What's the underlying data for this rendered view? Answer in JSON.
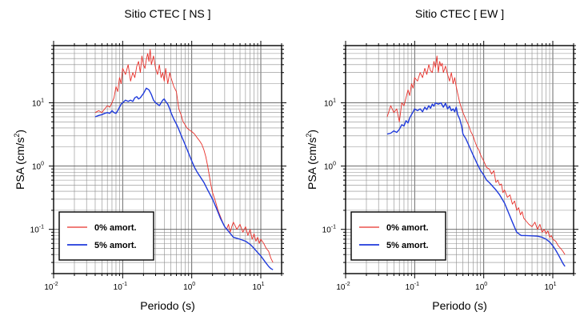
{
  "chart_data": [
    {
      "type": "line",
      "title": "Sitio CTEC [ NS ]",
      "xlabel": "Periodo (s)",
      "ylabel_main": "PSA (cm/s",
      "ylabel_sup": "2",
      "ylabel_end": ")",
      "xscale": "log",
      "yscale": "log",
      "xlim": [
        0.01,
        20
      ],
      "ylim": [
        0.02,
        80
      ],
      "grid": true,
      "legend_position": "bottom-left",
      "xticks": [
        {
          "value": 0.01,
          "base": "10",
          "exp": "-2"
        },
        {
          "value": 0.1,
          "base": "10",
          "exp": "-1"
        },
        {
          "value": 1,
          "base": "10",
          "exp": "0"
        },
        {
          "value": 10,
          "base": "10",
          "exp": "1"
        }
      ],
      "yticks": [
        {
          "value": 0.1,
          "base": "10",
          "exp": "-1"
        },
        {
          "value": 1,
          "base": "10",
          "exp": "0"
        },
        {
          "value": 10,
          "base": "10",
          "exp": "1"
        }
      ],
      "series": [
        {
          "name": "0% amort.",
          "color": "#e8302a",
          "x": [
            0.04,
            0.045,
            0.05,
            0.055,
            0.06,
            0.065,
            0.07,
            0.075,
            0.08,
            0.085,
            0.09,
            0.095,
            0.1,
            0.11,
            0.12,
            0.13,
            0.14,
            0.15,
            0.16,
            0.17,
            0.18,
            0.19,
            0.2,
            0.21,
            0.22,
            0.23,
            0.24,
            0.25,
            0.26,
            0.28,
            0.3,
            0.32,
            0.34,
            0.36,
            0.38,
            0.4,
            0.42,
            0.45,
            0.48,
            0.5,
            0.55,
            0.6,
            0.65,
            0.7,
            0.75,
            0.8,
            0.85,
            0.9,
            1.0,
            1.1,
            1.2,
            1.3,
            1.4,
            1.5,
            1.6,
            1.7,
            1.8,
            1.9,
            2.0,
            2.2,
            2.4,
            2.6,
            2.8,
            3.0,
            3.2,
            3.4,
            3.6,
            3.8,
            4.0,
            4.5,
            5.0,
            5.5,
            6.0,
            6.5,
            7.0,
            7.5,
            8.0,
            8.5,
            9.0,
            9.5,
            10,
            11,
            12,
            13,
            14,
            15
          ],
          "y": [
            7,
            7.5,
            7,
            8,
            9,
            8.5,
            10,
            12,
            18,
            15,
            25,
            20,
            35,
            28,
            40,
            22,
            30,
            25,
            38,
            45,
            30,
            55,
            40,
            35,
            48,
            60,
            45,
            70,
            40,
            55,
            35,
            28,
            40,
            25,
            30,
            22,
            35,
            20,
            30,
            25,
            18,
            15,
            8,
            6.5,
            5,
            4.5,
            4,
            3.8,
            3.5,
            3.2,
            2.8,
            2.5,
            2.2,
            1.8,
            1.4,
            1.0,
            0.7,
            0.5,
            0.38,
            0.28,
            0.2,
            0.16,
            0.13,
            0.11,
            0.1,
            0.12,
            0.09,
            0.11,
            0.13,
            0.1,
            0.12,
            0.09,
            0.11,
            0.08,
            0.1,
            0.07,
            0.085,
            0.065,
            0.075,
            0.06,
            0.07,
            0.06,
            0.05,
            0.045,
            0.035,
            0.03
          ]
        },
        {
          "name": "5% amort.",
          "color": "#1f3adb",
          "x": [
            0.04,
            0.045,
            0.05,
            0.055,
            0.06,
            0.065,
            0.07,
            0.075,
            0.08,
            0.085,
            0.09,
            0.095,
            0.1,
            0.11,
            0.12,
            0.13,
            0.14,
            0.15,
            0.16,
            0.17,
            0.18,
            0.19,
            0.2,
            0.22,
            0.24,
            0.26,
            0.28,
            0.3,
            0.32,
            0.34,
            0.36,
            0.38,
            0.4,
            0.42,
            0.45,
            0.48,
            0.5,
            0.55,
            0.6,
            0.65,
            0.7,
            0.8,
            0.9,
            1.0,
            1.1,
            1.2,
            1.3,
            1.5,
            1.7,
            2.0,
            2.3,
            2.6,
            3.0,
            3.5,
            4.0,
            5.0,
            6.0,
            7.0,
            8.0,
            9.0,
            10,
            11,
            12,
            13,
            14,
            15
          ],
          "y": [
            6,
            6.3,
            6.5,
            6.8,
            7,
            6.8,
            7.5,
            7,
            6.8,
            7.5,
            8.5,
            9.5,
            10,
            11,
            10.5,
            11,
            10.5,
            12,
            12.5,
            11.5,
            12,
            13,
            14,
            17,
            16,
            13.5,
            11,
            10,
            9.5,
            9,
            10,
            11,
            11.5,
            10.5,
            9.5,
            8,
            7,
            5.5,
            4.6,
            3.8,
            3.1,
            2.2,
            1.6,
            1.2,
            0.95,
            0.8,
            0.7,
            0.55,
            0.42,
            0.3,
            0.21,
            0.15,
            0.11,
            0.09,
            0.075,
            0.07,
            0.065,
            0.058,
            0.05,
            0.043,
            0.038,
            0.033,
            0.029,
            0.026,
            0.024,
            0.023
          ]
        }
      ]
    },
    {
      "type": "line",
      "title": "Sitio CTEC [ EW ]",
      "xlabel": "Periodo (s)",
      "ylabel_main": "PSA (cm/s",
      "ylabel_sup": "2",
      "ylabel_end": ")",
      "xscale": "log",
      "yscale": "log",
      "xlim": [
        0.01,
        20
      ],
      "ylim": [
        0.02,
        80
      ],
      "grid": true,
      "legend_position": "bottom-left",
      "xticks": [
        {
          "value": 0.01,
          "base": "10",
          "exp": "-2"
        },
        {
          "value": 0.1,
          "base": "10",
          "exp": "-1"
        },
        {
          "value": 1,
          "base": "10",
          "exp": "0"
        },
        {
          "value": 10,
          "base": "10",
          "exp": "1"
        }
      ],
      "yticks": [
        {
          "value": 0.1,
          "base": "10",
          "exp": "-1"
        },
        {
          "value": 1,
          "base": "10",
          "exp": "0"
        },
        {
          "value": 10,
          "base": "10",
          "exp": "1"
        }
      ],
      "series": [
        {
          "name": "0% amort.",
          "color": "#e8302a",
          "x": [
            0.04,
            0.045,
            0.05,
            0.055,
            0.06,
            0.065,
            0.07,
            0.075,
            0.08,
            0.085,
            0.09,
            0.095,
            0.1,
            0.11,
            0.12,
            0.13,
            0.14,
            0.15,
            0.16,
            0.17,
            0.18,
            0.19,
            0.2,
            0.21,
            0.22,
            0.23,
            0.24,
            0.25,
            0.26,
            0.28,
            0.3,
            0.32,
            0.34,
            0.36,
            0.38,
            0.4,
            0.42,
            0.45,
            0.48,
            0.5,
            0.55,
            0.6,
            0.65,
            0.7,
            0.75,
            0.8,
            0.85,
            0.9,
            1.0,
            1.1,
            1.2,
            1.3,
            1.4,
            1.5,
            1.6,
            1.7,
            1.8,
            1.9,
            2.0,
            2.2,
            2.4,
            2.6,
            2.8,
            3.0,
            3.2,
            3.4,
            3.6,
            3.8,
            4.0,
            4.5,
            5.0,
            5.5,
            6.0,
            6.5,
            7.0,
            7.5,
            8.0,
            8.5,
            9.0,
            9.5,
            10,
            11,
            12,
            13,
            14,
            15
          ],
          "y": [
            6,
            9,
            7,
            8,
            5,
            10,
            9,
            12,
            16,
            13,
            20,
            17,
            25,
            22,
            30,
            25,
            35,
            28,
            40,
            32,
            30,
            45,
            36,
            55,
            30,
            45,
            38,
            42,
            30,
            38,
            28,
            22,
            30,
            20,
            25,
            18,
            14,
            10,
            8,
            7,
            5.5,
            4.5,
            3.5,
            3.0,
            2.4,
            2.0,
            1.8,
            1.5,
            1.2,
            0.95,
            0.9,
            0.75,
            0.85,
            0.55,
            0.6,
            0.5,
            0.52,
            0.38,
            0.42,
            0.32,
            0.35,
            0.25,
            0.28,
            0.2,
            0.22,
            0.17,
            0.19,
            0.15,
            0.14,
            0.12,
            0.11,
            0.13,
            0.1,
            0.12,
            0.09,
            0.1,
            0.085,
            0.095,
            0.075,
            0.08,
            0.07,
            0.065,
            0.055,
            0.05,
            0.045,
            0.04
          ]
        },
        {
          "name": "5% amort.",
          "color": "#1f3adb",
          "x": [
            0.04,
            0.045,
            0.05,
            0.055,
            0.06,
            0.065,
            0.07,
            0.075,
            0.08,
            0.085,
            0.09,
            0.095,
            0.1,
            0.11,
            0.12,
            0.13,
            0.14,
            0.15,
            0.16,
            0.17,
            0.18,
            0.19,
            0.2,
            0.22,
            0.24,
            0.26,
            0.28,
            0.3,
            0.32,
            0.34,
            0.36,
            0.38,
            0.4,
            0.42,
            0.45,
            0.48,
            0.5,
            0.55,
            0.6,
            0.65,
            0.7,
            0.8,
            0.9,
            1.0,
            1.1,
            1.2,
            1.3,
            1.5,
            1.7,
            2.0,
            2.3,
            2.6,
            3.0,
            3.5,
            4.0,
            5.0,
            6.0,
            7.0,
            8.0,
            9.0,
            10,
            11,
            12,
            13,
            14,
            15
          ],
          "y": [
            3.2,
            3.3,
            3.6,
            3.4,
            3.8,
            4.5,
            4.3,
            5.2,
            4.8,
            5.8,
            6.5,
            7.2,
            8,
            7.5,
            8,
            7.2,
            8.5,
            7.8,
            9,
            8.2,
            9.5,
            8.8,
            10,
            9.5,
            10,
            8.5,
            9.8,
            8,
            8.8,
            7.5,
            8,
            7.2,
            8.5,
            6.5,
            5.5,
            4.2,
            3.2,
            2.7,
            2.2,
            1.8,
            1.5,
            1.1,
            0.85,
            0.72,
            0.6,
            0.55,
            0.5,
            0.42,
            0.35,
            0.26,
            0.18,
            0.13,
            0.09,
            0.08,
            0.08,
            0.079,
            0.078,
            0.075,
            0.07,
            0.063,
            0.055,
            0.047,
            0.04,
            0.034,
            0.029,
            0.026
          ]
        }
      ]
    }
  ]
}
